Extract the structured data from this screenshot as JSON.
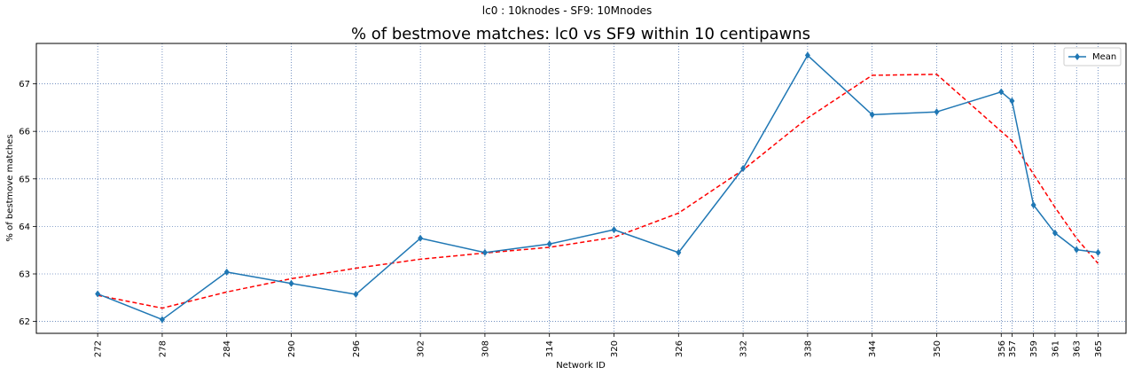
{
  "figure": {
    "suptitle": "lc0 : 10knodes - SF9: 10Mnodes"
  },
  "chart_data": {
    "type": "line",
    "title": "% of bestmove matches: lc0 vs SF9 within 10 centipawns",
    "xlabel": "Network ID",
    "ylabel": "% of bestmove matches",
    "x": [
      272,
      278,
      284,
      290,
      296,
      302,
      308,
      314,
      320,
      326,
      332,
      338,
      344,
      350,
      356,
      357,
      359,
      361,
      363,
      365
    ],
    "x_tick_labels": [
      "272",
      "278",
      "284",
      "290",
      "296",
      "302",
      "308",
      "314",
      "320",
      "326",
      "332",
      "338",
      "344",
      "350",
      "356",
      "357",
      "359",
      "361",
      "363",
      "365"
    ],
    "xlim": [
      266.3,
      367.6
    ],
    "ylim": [
      61.75,
      67.85
    ],
    "y_ticks": [
      62,
      63,
      64,
      65,
      66,
      67
    ],
    "grid": true,
    "legend_position": "top-right",
    "series": [
      {
        "name": "Mean",
        "color": "#1f77b4",
        "style": "solid",
        "marker": "diamond",
        "values": [
          62.58,
          62.04,
          63.04,
          62.8,
          62.57,
          63.75,
          63.45,
          63.63,
          63.93,
          63.45,
          65.22,
          67.6,
          66.35,
          66.41,
          66.83,
          66.64,
          64.45,
          63.86,
          63.51,
          63.45
        ]
      },
      {
        "color": "#ff0000",
        "style": "dashed",
        "marker": "none",
        "values": [
          62.55,
          62.28,
          62.62,
          62.9,
          63.12,
          63.31,
          63.44,
          63.56,
          63.77,
          64.28,
          65.19,
          66.28,
          67.18,
          67.2,
          66.0,
          65.8,
          65.1,
          64.4,
          63.75,
          63.22
        ]
      }
    ]
  }
}
